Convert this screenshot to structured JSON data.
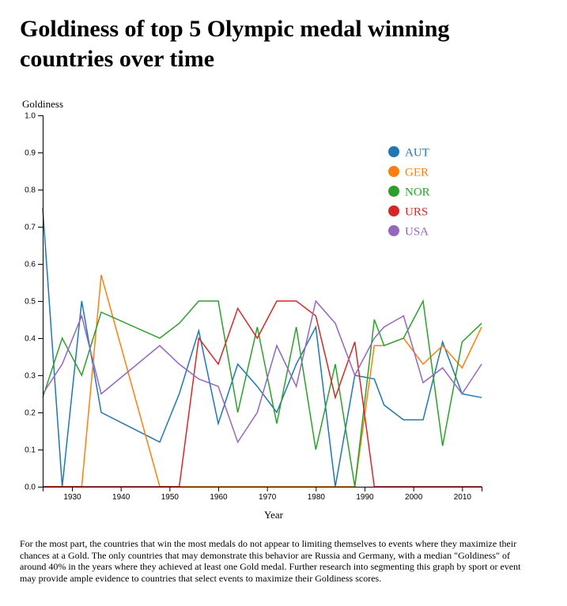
{
  "page": {
    "title": "Goldiness of top 5 Olympic medal winning countries over time",
    "caption": "For the most part, the countries that win the most medals do not appear to limiting themselves to events where they maximize their chances at a Gold. The only countries that may demonstrate this behavior are Russia and Germany, with a median \"Goldiness\" of around 40% in the years where they achieved at least one Gold medal. Further research into segmenting this graph by sport or event may provide ample evidence to countries that select events to maximize their Goldiness scores."
  },
  "chart_data": {
    "type": "line",
    "title": "Goldiness of top 5 Olympic medal winning countries over time",
    "xlabel": "Year",
    "ylabel": "Goldiness",
    "xlim": [
      1924,
      2014
    ],
    "ylim": [
      0,
      1
    ],
    "x_ticks": [
      1930,
      1940,
      1950,
      1960,
      1970,
      1980,
      1990,
      2000,
      2010
    ],
    "y_ticks": [
      0.0,
      0.1,
      0.2,
      0.3,
      0.4,
      0.5,
      0.6,
      0.7,
      0.8,
      0.9,
      1.0
    ],
    "grid": false,
    "legend_position": "top-right",
    "x": [
      1924,
      1928,
      1932,
      1936,
      1948,
      1952,
      1956,
      1960,
      1964,
      1968,
      1972,
      1976,
      1980,
      1984,
      1988,
      1992,
      1994,
      1998,
      2002,
      2006,
      2010,
      2014
    ],
    "series": [
      {
        "name": "AUT",
        "color": "#1f77b4",
        "values": [
          0.75,
          0.0,
          0.5,
          0.2,
          0.12,
          0.25,
          0.42,
          0.17,
          0.33,
          0.27,
          0.2,
          0.33,
          0.43,
          0.0,
          0.3,
          0.29,
          0.22,
          0.18,
          0.18,
          0.39,
          0.25,
          0.24
        ]
      },
      {
        "name": "GER",
        "color": "#ff7f0e",
        "values": [
          0.0,
          0.0,
          0.0,
          0.57,
          0.0,
          0.0,
          0.0,
          0.0,
          0.0,
          0.0,
          0.0,
          0.0,
          0.0,
          0.0,
          0.0,
          0.38,
          0.38,
          0.4,
          0.33,
          0.38,
          0.32,
          0.43
        ]
      },
      {
        "name": "NOR",
        "color": "#2ca02c",
        "values": [
          0.24,
          0.4,
          0.3,
          0.47,
          0.4,
          0.44,
          0.5,
          0.5,
          0.2,
          0.43,
          0.17,
          0.43,
          0.1,
          0.33,
          0.0,
          0.45,
          0.38,
          0.4,
          0.5,
          0.11,
          0.39,
          0.44
        ]
      },
      {
        "name": "URS",
        "color": "#d62728",
        "values": [
          0.0,
          0.0,
          0.0,
          0.0,
          0.0,
          0.0,
          0.4,
          0.33,
          0.48,
          0.4,
          0.5,
          0.5,
          0.46,
          0.24,
          0.39,
          0.0,
          0.0,
          0.0,
          0.0,
          0.0,
          0.0,
          0.0
        ]
      },
      {
        "name": "USA",
        "color": "#9467bd",
        "values": [
          0.25,
          0.33,
          0.46,
          0.25,
          0.38,
          0.33,
          0.29,
          0.27,
          0.12,
          0.2,
          0.38,
          0.27,
          0.5,
          0.44,
          0.3,
          0.4,
          0.43,
          0.46,
          0.28,
          0.32,
          0.25,
          0.33
        ]
      }
    ]
  }
}
